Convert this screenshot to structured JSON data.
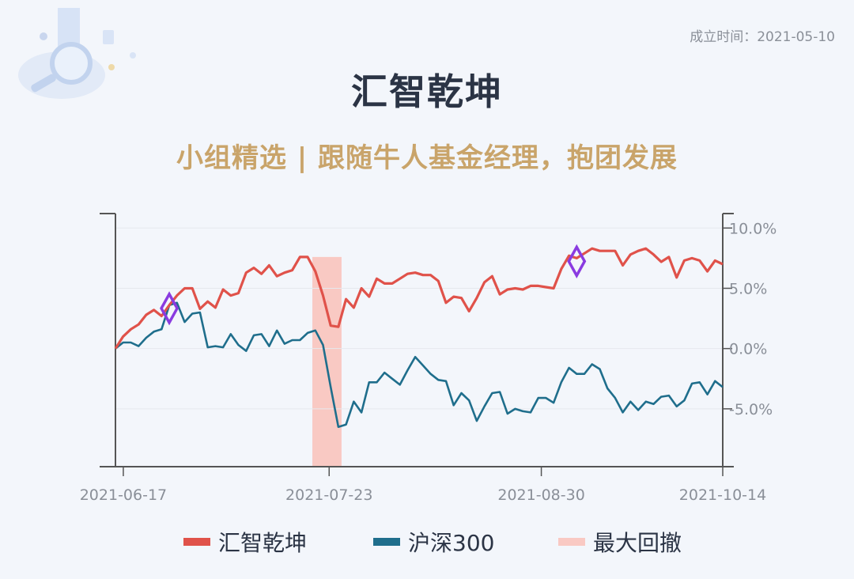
{
  "header": {
    "date_text": "成立时间：2021-05-10",
    "title": "汇智乾坤",
    "subtitle": "小组精选 | 跟随牛人基金经理，抱团发展"
  },
  "colors": {
    "fund": "#e0524a",
    "index": "#1f6e8c",
    "drawdown": "#f9c9c3",
    "marker": "#8a3be0",
    "axis": "#555555",
    "title": "#2b3445",
    "subtitle": "#c9a46a"
  },
  "chart_data": {
    "type": "line",
    "x_tick_labels": [
      "2021-06-17",
      "2021-07-23",
      "2021-08-30",
      "2021-10-14"
    ],
    "y_tick_labels": [
      "10.0%",
      "5.0%",
      "0.0%",
      "-5.0%"
    ],
    "y_ticks": [
      10,
      5,
      0,
      -5
    ],
    "ylim": [
      -9.8,
      11.2
    ],
    "grid": true,
    "legend_position": "bottom",
    "series": [
      {
        "name": "汇智乾坤",
        "values": [
          0.0,
          1.0,
          1.6,
          2.0,
          2.8,
          3.2,
          2.7,
          3.6,
          4.4,
          5.0,
          5.0,
          3.3,
          3.9,
          3.4,
          4.9,
          4.4,
          4.6,
          6.3,
          6.7,
          6.2,
          6.9,
          6.0,
          6.3,
          6.5,
          7.6,
          7.6,
          6.4,
          4.4,
          1.9,
          1.8,
          4.1,
          3.4,
          5.0,
          4.3,
          5.8,
          5.4,
          5.4,
          5.8,
          6.2,
          6.3,
          6.1,
          6.1,
          5.6,
          3.8,
          4.3,
          4.2,
          3.1,
          4.2,
          5.5,
          6.0,
          4.5,
          4.9,
          5.0,
          4.9,
          5.2,
          5.2,
          5.1,
          5.0,
          6.6,
          7.7,
          7.5,
          7.9,
          8.3,
          8.1,
          8.1,
          8.1,
          6.9,
          7.8,
          8.1,
          8.3,
          7.8,
          7.2,
          7.6,
          5.9,
          7.3,
          7.5,
          7.3,
          6.4,
          7.3,
          7.0
        ]
      },
      {
        "name": "沪深300",
        "values": [
          0.0,
          0.5,
          0.5,
          0.2,
          0.9,
          1.4,
          1.6,
          3.6,
          3.8,
          2.2,
          2.9,
          3.0,
          0.1,
          0.2,
          0.1,
          1.2,
          0.3,
          -0.2,
          1.1,
          1.2,
          0.2,
          1.5,
          0.4,
          0.7,
          0.7,
          1.3,
          1.5,
          0.3,
          -3.2,
          -6.5,
          -6.3,
          -4.4,
          -5.3,
          -2.8,
          -2.8,
          -2.0,
          -2.5,
          -3.0,
          -1.8,
          -0.7,
          -1.4,
          -2.1,
          -2.6,
          -2.7,
          -4.7,
          -3.7,
          -4.3,
          -6.0,
          -4.8,
          -3.7,
          -3.6,
          -5.4,
          -5.0,
          -5.2,
          -5.3,
          -4.1,
          -4.1,
          -4.5,
          -2.8,
          -1.6,
          -2.1,
          -2.1,
          -1.3,
          -1.7,
          -3.3,
          -4.1,
          -5.3,
          -4.4,
          -5.1,
          -4.4,
          -4.6,
          -4.0,
          -3.9,
          -4.8,
          -4.3,
          -2.9,
          -2.8,
          -3.8,
          -2.7,
          -3.2
        ]
      }
    ],
    "drawdown_range": [
      25,
      29
    ],
    "markers": [
      7,
      60
    ],
    "legend": [
      {
        "label": "汇智乾坤",
        "key": "fund"
      },
      {
        "label": "沪深300",
        "key": "index"
      },
      {
        "label": "最大回撤",
        "key": "drawdown"
      }
    ]
  }
}
